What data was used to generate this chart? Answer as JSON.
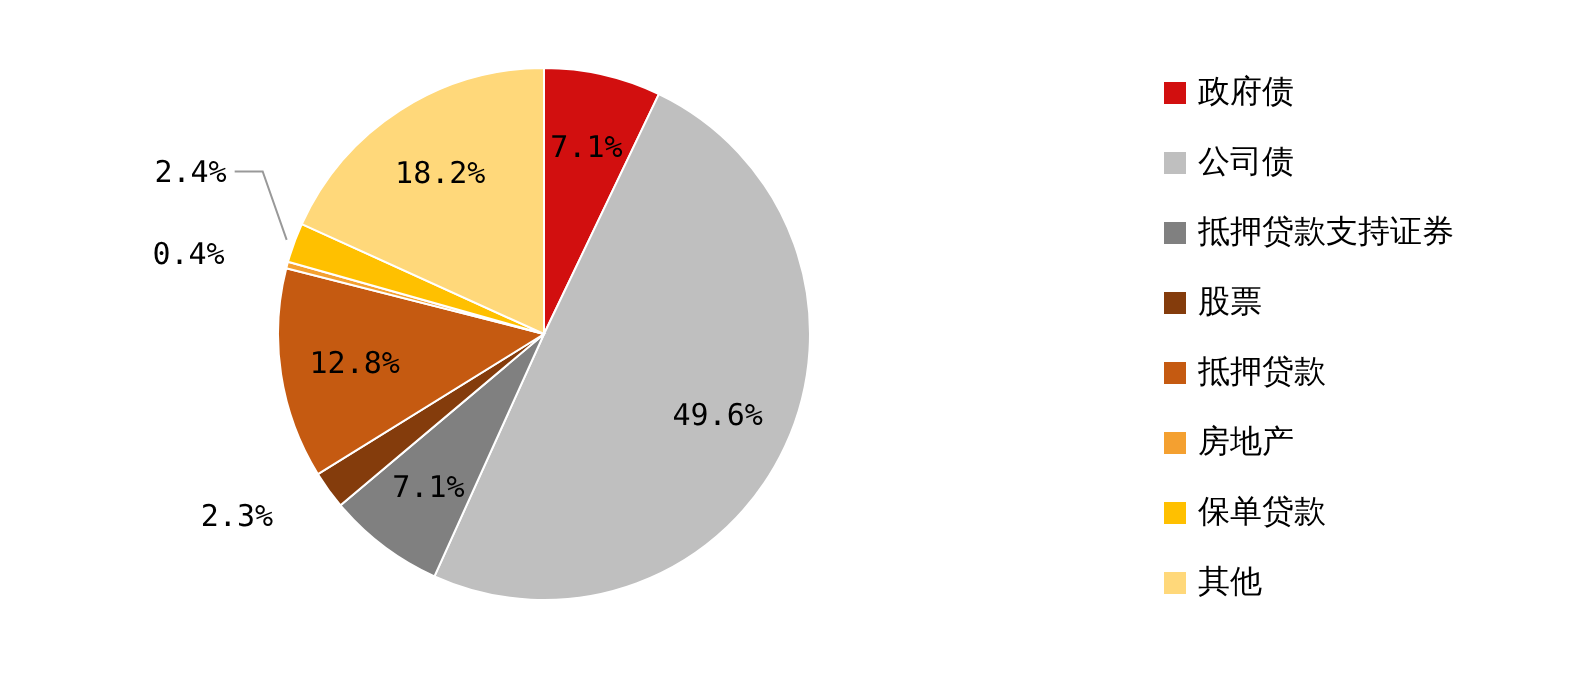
{
  "chart_data": {
    "type": "pie",
    "categories": [
      "政府债",
      "公司债",
      "抵押贷款支持证券",
      "股票",
      "抵押贷款",
      "房地产",
      "保单贷款",
      "其他"
    ],
    "values": [
      7.1,
      49.6,
      7.1,
      2.3,
      12.8,
      0.4,
      2.4,
      18.2
    ],
    "colors": [
      "#d20f0f",
      "#bfbfbf",
      "#808080",
      "#843c0c",
      "#c55a11",
      "#f4a030",
      "#ffc000",
      "#ffd87a"
    ],
    "value_labels": [
      "7.1%",
      "49.6%",
      "7.1%",
      "2.3%",
      "12.8%",
      "0.4%",
      "2.4%",
      "18.2%"
    ],
    "legend": "right"
  }
}
